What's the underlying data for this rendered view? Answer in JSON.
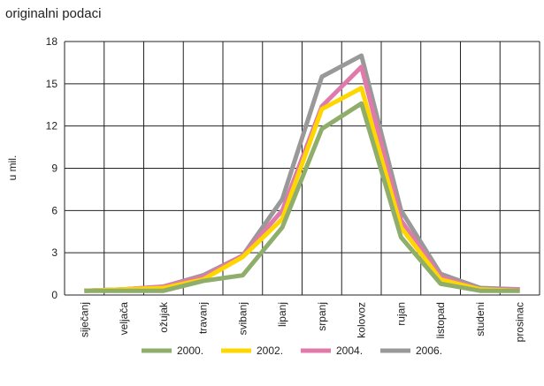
{
  "chart_data": {
    "type": "line",
    "subtitle": "originalni podaci",
    "y_label": "u mil.",
    "categories": [
      "siječanj",
      "veljača",
      "ožujak",
      "travanj",
      "svibanj",
      "lipanj",
      "srpanj",
      "kolovoz",
      "rujan",
      "listopad",
      "studeni",
      "prosinac"
    ],
    "series": [
      {
        "name": "2000.",
        "color": "#8fad6b",
        "values": [
          0.3,
          0.3,
          0.3,
          1.0,
          1.4,
          4.8,
          11.8,
          13.6,
          4.1,
          0.8,
          0.3,
          0.3
        ]
      },
      {
        "name": "2002.",
        "color": "#ffd700",
        "values": [
          0.3,
          0.4,
          0.5,
          1.1,
          2.7,
          5.4,
          13.2,
          14.7,
          4.8,
          1.1,
          0.4,
          0.3
        ]
      },
      {
        "name": "2004.",
        "color": "#e07aaa",
        "values": [
          0.3,
          0.4,
          0.6,
          1.3,
          2.8,
          6.0,
          13.4,
          16.2,
          5.3,
          1.3,
          0.4,
          0.4
        ]
      },
      {
        "name": "2006.",
        "color": "#999999",
        "values": [
          0.3,
          0.4,
          0.6,
          1.4,
          2.8,
          6.8,
          15.5,
          17.0,
          6.0,
          1.5,
          0.5,
          0.4
        ]
      }
    ],
    "ylim": [
      0,
      18
    ],
    "yticks": [
      0,
      3,
      6,
      9,
      12,
      15,
      18
    ],
    "grid": true
  }
}
